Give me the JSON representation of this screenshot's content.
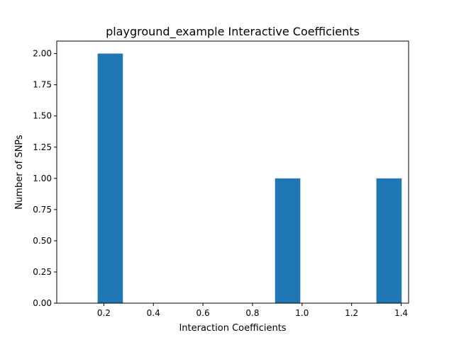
{
  "chart_data": {
    "type": "bar",
    "title": "playground_example Interactive Coefficients",
    "xlabel": "Interaction Coefficients",
    "ylabel": "Number of SNPs",
    "xlim": [
      0.01,
      1.43
    ],
    "ylim": [
      0,
      2.1
    ],
    "xticks": [
      "0.2",
      "0.4",
      "0.6",
      "0.8",
      "1.0",
      "1.2",
      "1.4"
    ],
    "yticks": [
      "0.00",
      "0.25",
      "0.50",
      "0.75",
      "1.00",
      "1.25",
      "1.50",
      "1.75",
      "2.00"
    ],
    "bars": [
      {
        "x0": 0.175,
        "x1": 0.277,
        "value": 2
      },
      {
        "x0": 0.891,
        "x1": 0.993,
        "value": 1
      },
      {
        "x0": 1.3,
        "x1": 1.402,
        "value": 1
      }
    ],
    "grid": false,
    "bar_color": "#1f77b4"
  }
}
